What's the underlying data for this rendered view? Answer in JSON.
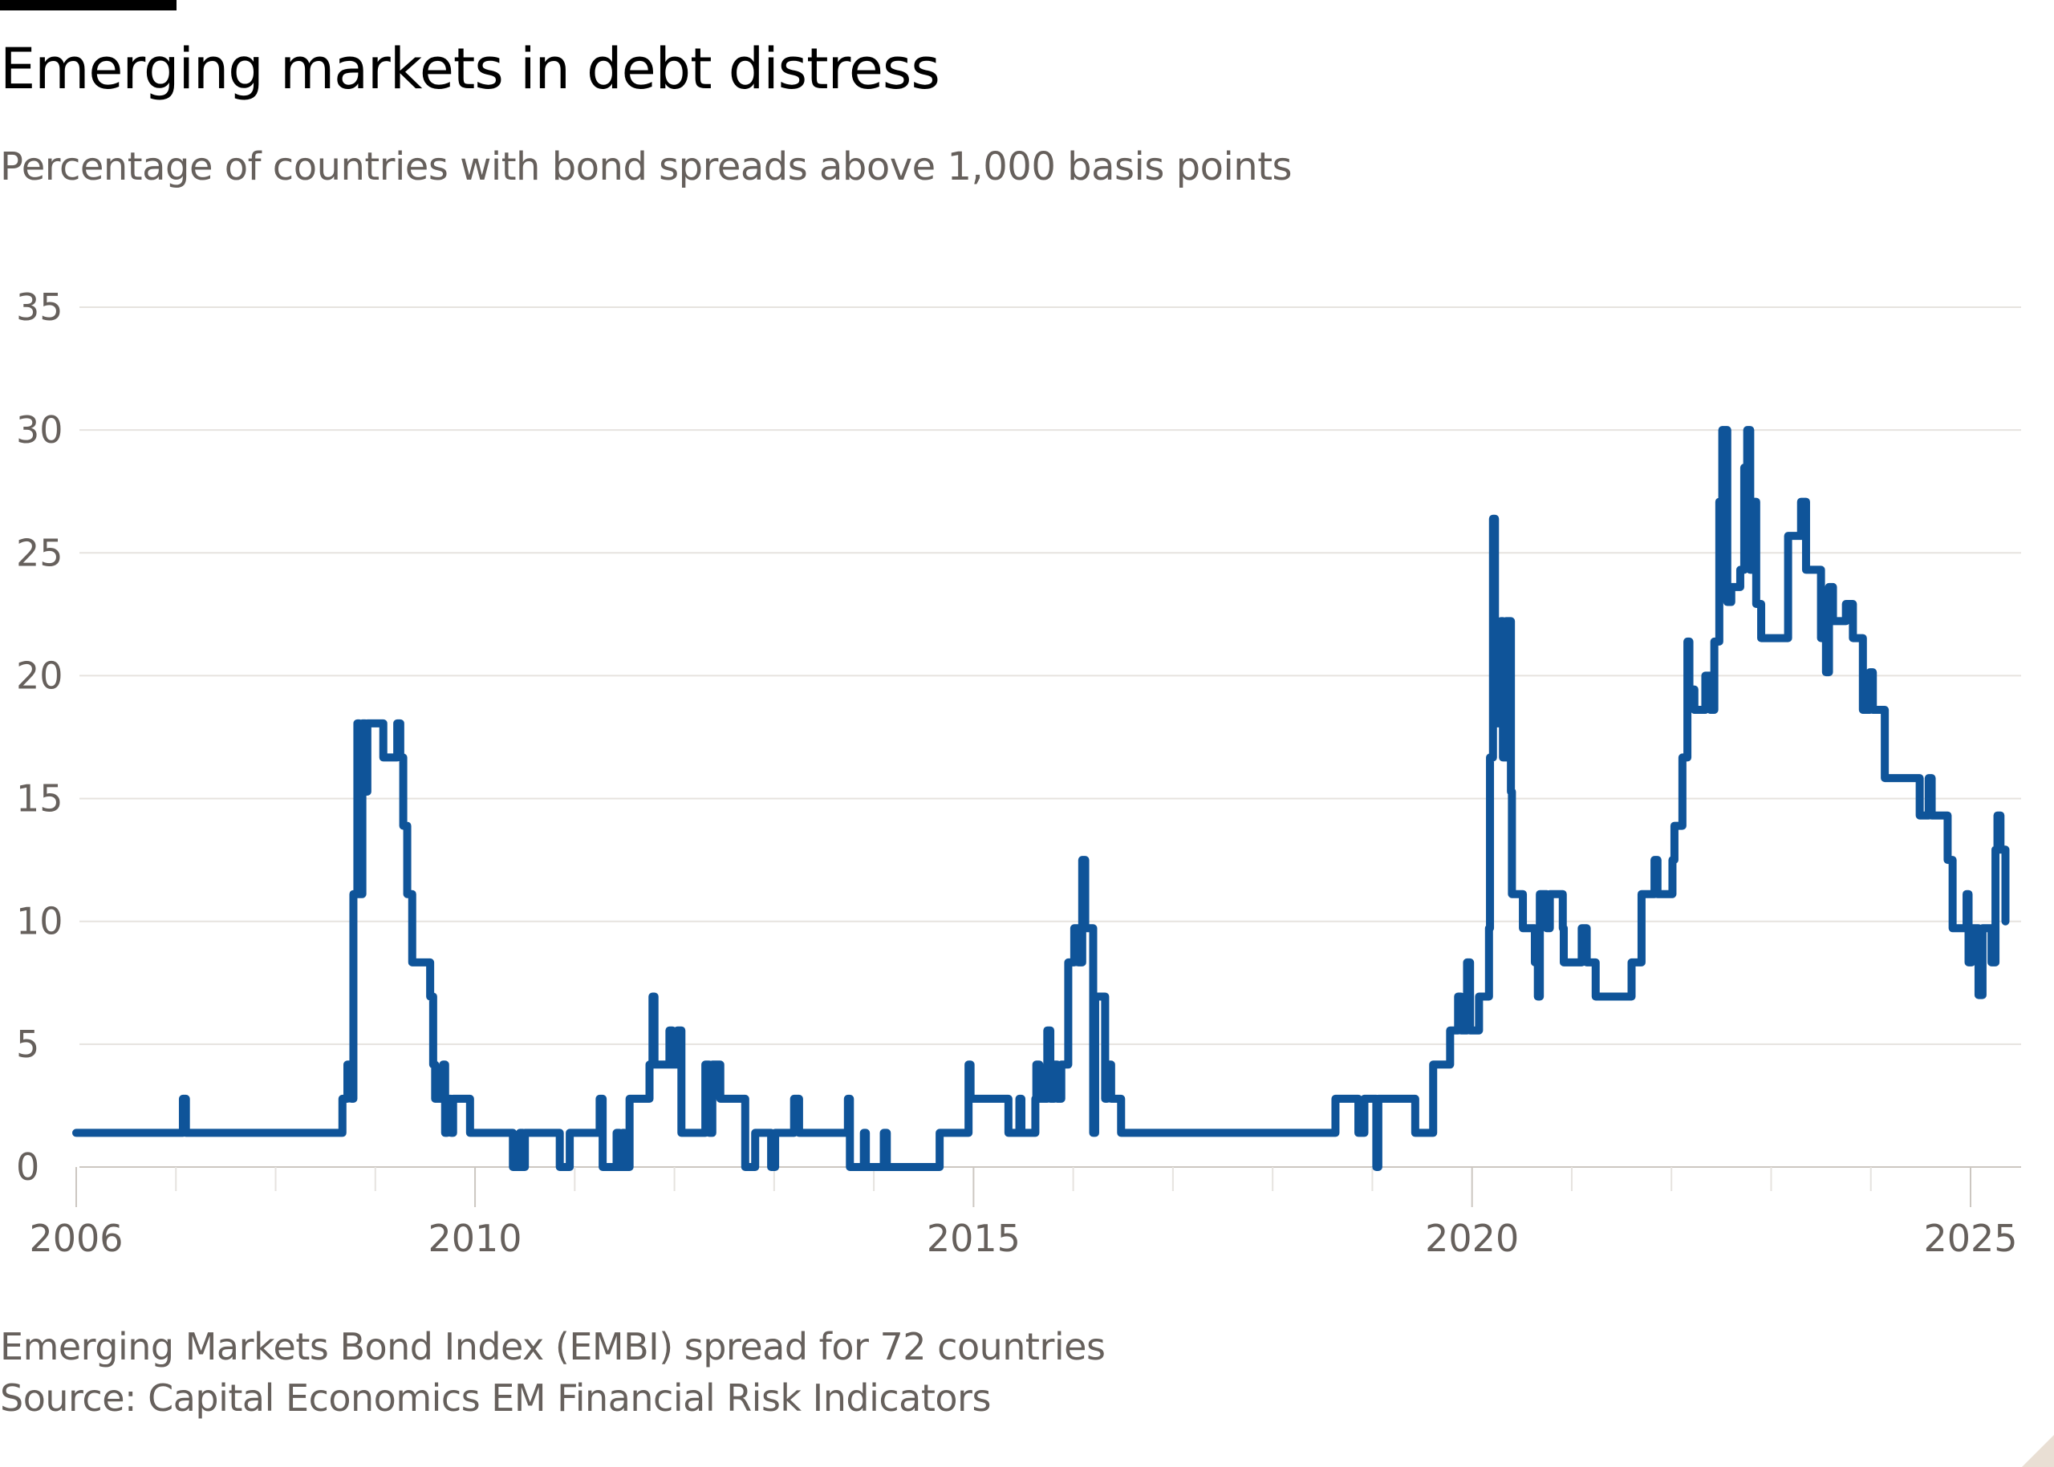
{
  "header": {
    "title": "Emerging markets in debt distress",
    "subtitle": "Percentage of countries with bond spreads above 1,000 basis points"
  },
  "footer": {
    "note": "Emerging Markets Bond Index (EMBI) spread for 72 countries",
    "source": "Source: Capital Economics EM Financial Risk Indicators"
  },
  "colors": {
    "line": "#0f5499",
    "grid": "#e6e3df",
    "text": "#66605c"
  },
  "chart_data": {
    "type": "line",
    "step": true,
    "title": "Emerging markets in debt distress",
    "subtitle": "Percentage of countries with bond spreads above 1,000 basis points",
    "xlim": [
      2006,
      2025.4
    ],
    "ylim": [
      0,
      35
    ],
    "yticks": [
      0,
      5,
      10,
      15,
      20,
      25,
      30,
      35
    ],
    "xtick_labels": [
      "2006",
      "2010",
      "2015",
      "2020",
      "2025"
    ],
    "xtick_values": [
      2006,
      2010,
      2015,
      2020,
      2025
    ],
    "minor_xticks": [
      2007,
      2008,
      2009,
      2011,
      2012,
      2013,
      2014,
      2016,
      2017,
      2018,
      2019,
      2021,
      2022,
      2023,
      2024
    ],
    "grid": true,
    "series": [
      {
        "points": [
          [
            2006.0,
            1.39
          ],
          [
            2007.07,
            2.78
          ],
          [
            2007.1,
            1.39
          ],
          [
            2008.67,
            2.78
          ],
          [
            2008.72,
            4.17
          ],
          [
            2008.76,
            2.78
          ],
          [
            2008.78,
            11.11
          ],
          [
            2008.82,
            18.06
          ],
          [
            2008.84,
            11.11
          ],
          [
            2008.87,
            18.06
          ],
          [
            2008.9,
            15.28
          ],
          [
            2008.92,
            18.06
          ],
          [
            2009.08,
            16.67
          ],
          [
            2009.22,
            18.06
          ],
          [
            2009.25,
            16.67
          ],
          [
            2009.28,
            13.89
          ],
          [
            2009.32,
            11.11
          ],
          [
            2009.37,
            8.33
          ],
          [
            2009.55,
            6.94
          ],
          [
            2009.58,
            4.17
          ],
          [
            2009.6,
            2.78
          ],
          [
            2009.68,
            4.17
          ],
          [
            2009.7,
            1.39
          ],
          [
            2009.72,
            2.78
          ],
          [
            2009.76,
            1.39
          ],
          [
            2009.78,
            2.78
          ],
          [
            2009.95,
            1.39
          ],
          [
            2010.38,
            0
          ],
          [
            2010.45,
            1.39
          ],
          [
            2010.48,
            0
          ],
          [
            2010.5,
            1.39
          ],
          [
            2010.85,
            0
          ],
          [
            2010.95,
            1.39
          ],
          [
            2011.25,
            2.78
          ],
          [
            2011.28,
            0
          ],
          [
            2011.42,
            1.39
          ],
          [
            2011.45,
            0
          ],
          [
            2011.48,
            1.39
          ],
          [
            2011.5,
            0
          ],
          [
            2011.55,
            2.78
          ],
          [
            2011.75,
            4.17
          ],
          [
            2011.78,
            6.94
          ],
          [
            2011.8,
            4.17
          ],
          [
            2011.95,
            5.56
          ],
          [
            2011.98,
            4.17
          ],
          [
            2012.03,
            5.56
          ],
          [
            2012.07,
            1.39
          ],
          [
            2012.31,
            4.17
          ],
          [
            2012.35,
            1.39
          ],
          [
            2012.38,
            4.17
          ],
          [
            2012.46,
            2.78
          ],
          [
            2012.71,
            0
          ],
          [
            2012.81,
            1.39
          ],
          [
            2012.97,
            0
          ],
          [
            2013.01,
            1.39
          ],
          [
            2013.2,
            2.78
          ],
          [
            2013.25,
            1.39
          ],
          [
            2013.74,
            2.78
          ],
          [
            2013.76,
            0
          ],
          [
            2013.9,
            1.39
          ],
          [
            2013.92,
            0
          ],
          [
            2014.1,
            1.39
          ],
          [
            2014.13,
            0
          ],
          [
            2014.66,
            1.39
          ],
          [
            2014.95,
            4.17
          ],
          [
            2014.97,
            2.78
          ],
          [
            2015.35,
            1.39
          ],
          [
            2015.46,
            2.78
          ],
          [
            2015.48,
            1.39
          ],
          [
            2015.62,
            2.78
          ],
          [
            2015.63,
            4.17
          ],
          [
            2015.66,
            2.78
          ],
          [
            2015.74,
            5.56
          ],
          [
            2015.77,
            2.78
          ],
          [
            2015.81,
            4.17
          ],
          [
            2015.84,
            2.78
          ],
          [
            2015.88,
            4.17
          ],
          [
            2015.95,
            8.33
          ],
          [
            2016.01,
            9.72
          ],
          [
            2016.05,
            8.33
          ],
          [
            2016.09,
            12.5
          ],
          [
            2016.12,
            9.72
          ],
          [
            2016.2,
            1.39
          ],
          [
            2016.22,
            6.94
          ],
          [
            2016.32,
            2.78
          ],
          [
            2016.34,
            4.17
          ],
          [
            2016.38,
            2.78
          ],
          [
            2016.48,
            1.39
          ],
          [
            2018.63,
            2.78
          ],
          [
            2018.86,
            1.39
          ],
          [
            2018.92,
            2.78
          ],
          [
            2019.04,
            0
          ],
          [
            2019.06,
            2.78
          ],
          [
            2019.1,
            2.78
          ],
          [
            2019.43,
            1.39
          ],
          [
            2019.61,
            4.17
          ],
          [
            2019.78,
            5.56
          ],
          [
            2019.86,
            6.94
          ],
          [
            2019.89,
            5.56
          ],
          [
            2019.95,
            8.33
          ],
          [
            2019.98,
            5.56
          ],
          [
            2020.07,
            6.94
          ],
          [
            2020.17,
            9.72
          ],
          [
            2020.18,
            16.67
          ],
          [
            2020.21,
            26.39
          ],
          [
            2020.23,
            18.06
          ],
          [
            2020.29,
            22.22
          ],
          [
            2020.31,
            16.67
          ],
          [
            2020.34,
            22.22
          ],
          [
            2020.39,
            15.28
          ],
          [
            2020.4,
            11.11
          ],
          [
            2020.51,
            9.72
          ],
          [
            2020.63,
            8.33
          ],
          [
            2020.66,
            6.94
          ],
          [
            2020.68,
            11.11
          ],
          [
            2020.75,
            9.72
          ],
          [
            2020.78,
            11.11
          ],
          [
            2020.91,
            9.72
          ],
          [
            2020.92,
            8.33
          ],
          [
            2021.1,
            9.72
          ],
          [
            2021.15,
            8.33
          ],
          [
            2021.24,
            6.94
          ],
          [
            2021.6,
            8.33
          ],
          [
            2021.7,
            11.11
          ],
          [
            2021.83,
            12.5
          ],
          [
            2021.86,
            11.11
          ],
          [
            2022.01,
            12.5
          ],
          [
            2022.03,
            13.89
          ],
          [
            2022.11,
            16.67
          ],
          [
            2022.16,
            21.39
          ],
          [
            2022.18,
            19.44
          ],
          [
            2022.23,
            18.61
          ],
          [
            2022.34,
            20.0
          ],
          [
            2022.39,
            18.61
          ],
          [
            2022.43,
            21.39
          ],
          [
            2022.48,
            27.08
          ],
          [
            2022.51,
            30.0
          ],
          [
            2022.56,
            23.0
          ],
          [
            2022.6,
            23.61
          ],
          [
            2022.69,
            24.31
          ],
          [
            2022.73,
            28.47
          ],
          [
            2022.76,
            30.0
          ],
          [
            2022.79,
            24.31
          ],
          [
            2022.83,
            27.08
          ],
          [
            2022.85,
            22.92
          ],
          [
            2022.9,
            21.53
          ],
          [
            2023.17,
            25.69
          ],
          [
            2023.3,
            27.08
          ],
          [
            2023.35,
            24.31
          ],
          [
            2023.5,
            21.53
          ],
          [
            2023.55,
            20.14
          ],
          [
            2023.58,
            23.61
          ],
          [
            2023.62,
            22.22
          ],
          [
            2023.75,
            22.92
          ],
          [
            2023.82,
            21.53
          ],
          [
            2023.92,
            18.61
          ],
          [
            2023.99,
            20.14
          ],
          [
            2024.02,
            18.61
          ],
          [
            2024.14,
            15.83
          ],
          [
            2024.49,
            14.31
          ],
          [
            2024.58,
            15.83
          ],
          [
            2024.61,
            14.31
          ],
          [
            2024.77,
            12.5
          ],
          [
            2024.82,
            9.72
          ],
          [
            2024.96,
            11.11
          ],
          [
            2024.98,
            8.33
          ],
          [
            2025.01,
            9.72
          ],
          [
            2025.08,
            7.0
          ],
          [
            2025.12,
            9.72
          ],
          [
            2025.21,
            8.33
          ],
          [
            2025.25,
            12.92
          ],
          [
            2025.27,
            14.31
          ],
          [
            2025.3,
            12.92
          ],
          [
            2025.35,
            10.0
          ]
        ]
      }
    ]
  }
}
